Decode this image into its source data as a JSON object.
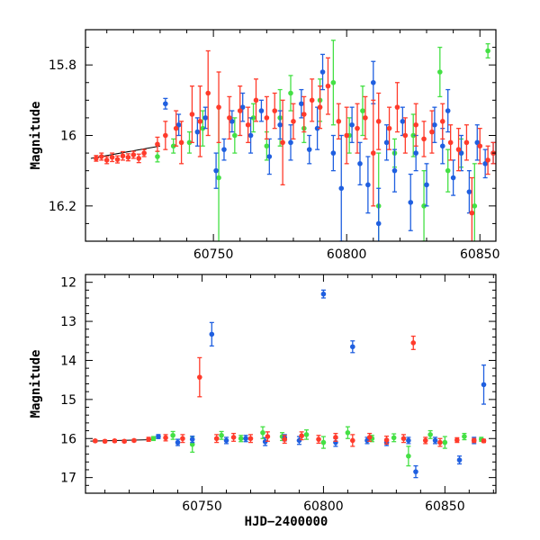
{
  "chart_data": [
    {
      "type": "scatter",
      "panel": "top",
      "xlim": [
        60702,
        60856
      ],
      "ylim": [
        16.3,
        15.7
      ],
      "y_inverted": true,
      "xlabel": "",
      "ylabel": "Magnitude",
      "x_ticks": [
        60750,
        60800,
        60850
      ],
      "y_ticks": [
        15.8,
        16,
        16.2
      ],
      "x_tick_labels": [
        "60750",
        "60800",
        "60850"
      ],
      "y_tick_labels": [
        "15.8",
        "16",
        "16.2"
      ],
      "grid": false,
      "colors": {
        "red": "#ff3b2b",
        "blue": "#1f5fe0",
        "green": "#44e044",
        "line": "#000000"
      },
      "trend_line": [
        [
          60704,
          16.065
        ],
        [
          60730,
          16.03
        ]
      ],
      "series": [
        {
          "color": "red",
          "points": [
            [
              60706,
              16.065,
              0.008
            ],
            [
              60708,
              16.06,
              0.01
            ],
            [
              60710,
              16.07,
              0.01
            ],
            [
              60712,
              16.062,
              0.012
            ],
            [
              60714,
              16.068,
              0.01
            ],
            [
              60716,
              16.058,
              0.012
            ],
            [
              60718,
              16.062,
              0.01
            ],
            [
              60720,
              16.055,
              0.01
            ],
            [
              60722,
              16.065,
              0.012
            ],
            [
              60724,
              16.05,
              0.01
            ],
            [
              60729,
              16.025,
              0.02
            ],
            [
              60732,
              16.0,
              0.04
            ],
            [
              60736,
              15.98,
              0.05
            ],
            [
              60738,
              16.02,
              0.06
            ],
            [
              60742,
              15.94,
              0.08
            ],
            [
              60745,
              15.96,
              0.1
            ],
            [
              60748,
              15.88,
              0.12
            ],
            [
              60752,
              15.92,
              0.1
            ],
            [
              60756,
              15.95,
              0.06
            ],
            [
              60760,
              15.93,
              0.07
            ],
            [
              60763,
              15.97,
              0.05
            ],
            [
              60766,
              15.9,
              0.06
            ],
            [
              60770,
              15.95,
              0.06
            ],
            [
              60773,
              15.93,
              0.05
            ],
            [
              60776,
              16.02,
              0.12
            ],
            [
              60780,
              15.96,
              0.05
            ],
            [
              60784,
              15.94,
              0.05
            ],
            [
              60787,
              15.9,
              0.06
            ],
            [
              60790,
              15.92,
              0.06
            ],
            [
              60793,
              15.86,
              0.08
            ],
            [
              60797,
              15.96,
              0.05
            ],
            [
              60800,
              16.0,
              0.08
            ],
            [
              60804,
              15.98,
              0.07
            ],
            [
              60807,
              15.95,
              0.06
            ],
            [
              60810,
              16.05,
              0.15
            ],
            [
              60812,
              15.96,
              0.08
            ],
            [
              60816,
              15.98,
              0.06
            ],
            [
              60819,
              15.92,
              0.07
            ],
            [
              60822,
              16.0,
              0.05
            ],
            [
              60826,
              15.97,
              0.06
            ],
            [
              60829,
              16.01,
              0.05
            ],
            [
              60832,
              15.99,
              0.06
            ],
            [
              60836,
              15.96,
              0.05
            ],
            [
              60839,
              16.02,
              0.05
            ],
            [
              60842,
              16.04,
              0.06
            ],
            [
              60845,
              16.02,
              0.05
            ],
            [
              60847,
              16.22,
              0.1
            ],
            [
              60850,
              16.03,
              0.05
            ],
            [
              60853,
              16.07,
              0.04
            ],
            [
              60855,
              16.05,
              0.03
            ]
          ]
        },
        {
          "color": "blue",
          "points": [
            [
              60732,
              15.91,
              0.015
            ],
            [
              60737,
              15.97,
              0.03
            ],
            [
              60744,
              15.99,
              0.04
            ],
            [
              60747,
              15.95,
              0.03
            ],
            [
              60751,
              16.1,
              0.05
            ],
            [
              60754,
              16.04,
              0.03
            ],
            [
              60757,
              15.96,
              0.03
            ],
            [
              60761,
              15.92,
              0.04
            ],
            [
              60764,
              16.0,
              0.05
            ],
            [
              60768,
              15.93,
              0.03
            ],
            [
              60771,
              16.06,
              0.05
            ],
            [
              60775,
              15.97,
              0.04
            ],
            [
              60779,
              16.02,
              0.05
            ],
            [
              60783,
              15.91,
              0.04
            ],
            [
              60786,
              16.04,
              0.04
            ],
            [
              60789,
              15.98,
              0.06
            ],
            [
              60791,
              15.82,
              0.05
            ],
            [
              60795,
              16.05,
              0.05
            ],
            [
              60798,
              16.15,
              0.15
            ],
            [
              60802,
              15.97,
              0.05
            ],
            [
              60805,
              16.08,
              0.06
            ],
            [
              60808,
              16.14,
              0.08
            ],
            [
              60810,
              15.85,
              0.06
            ],
            [
              60812,
              16.25,
              0.1
            ],
            [
              60815,
              16.02,
              0.05
            ],
            [
              60818,
              16.1,
              0.06
            ],
            [
              60821,
              15.96,
              0.04
            ],
            [
              60824,
              16.19,
              0.08
            ],
            [
              60826,
              16.05,
              0.05
            ],
            [
              60830,
              16.14,
              0.06
            ],
            [
              60833,
              15.97,
              0.05
            ],
            [
              60836,
              16.03,
              0.05
            ],
            [
              60838,
              15.93,
              0.06
            ],
            [
              60840,
              16.12,
              0.05
            ],
            [
              60843,
              16.05,
              0.05
            ],
            [
              60846,
              16.16,
              0.06
            ],
            [
              60849,
              16.02,
              0.05
            ],
            [
              60852,
              16.08,
              0.04
            ],
            [
              60855,
              16.05,
              0.03
            ]
          ]
        },
        {
          "color": "green",
          "points": [
            [
              60729,
              16.06,
              0.015
            ],
            [
              60735,
              16.03,
              0.02
            ],
            [
              60741,
              16.02,
              0.03
            ],
            [
              60746,
              15.98,
              0.05
            ],
            [
              60752,
              16.12,
              0.2
            ],
            [
              60758,
              16.0,
              0.05
            ],
            [
              60765,
              15.95,
              0.04
            ],
            [
              60770,
              16.03,
              0.04
            ],
            [
              60775,
              15.95,
              0.08
            ],
            [
              60779,
              15.88,
              0.05
            ],
            [
              60784,
              15.98,
              0.04
            ],
            [
              60790,
              15.9,
              0.06
            ],
            [
              60795,
              15.85,
              0.12
            ],
            [
              60801,
              16.0,
              0.05
            ],
            [
              60806,
              15.93,
              0.07
            ],
            [
              60812,
              16.2,
              0.15
            ],
            [
              60818,
              16.05,
              0.04
            ],
            [
              60825,
              16.0,
              0.06
            ],
            [
              60829,
              16.2,
              0.1
            ],
            [
              60835,
              15.82,
              0.07
            ],
            [
              60838,
              16.1,
              0.06
            ],
            [
              60843,
              16.05,
              0.04
            ],
            [
              60848,
              16.2,
              0.12
            ],
            [
              60853,
              15.76,
              0.02
            ]
          ]
        }
      ]
    },
    {
      "type": "scatter",
      "panel": "bottom",
      "xlim": [
        60702,
        60871
      ],
      "ylim": [
        17.4,
        11.8
      ],
      "y_inverted": true,
      "xlabel": "HJD−2400000",
      "ylabel": "Magnitude",
      "x_ticks": [
        60750,
        60800,
        60850
      ],
      "y_ticks": [
        12,
        13,
        14,
        15,
        16,
        17
      ],
      "x_tick_labels": [
        "60750",
        "60800",
        "60850"
      ],
      "y_tick_labels": [
        "12",
        "13",
        "14",
        "15",
        "16",
        "17"
      ],
      "grid": false,
      "colors": {
        "red": "#ff3b2b",
        "blue": "#1f5fe0",
        "green": "#44e044",
        "line": "#000000"
      },
      "trend_line": [
        [
          60704,
          16.065
        ],
        [
          60730,
          16.03
        ]
      ],
      "series": [
        {
          "color": "red",
          "points": [
            [
              60706,
              16.06,
              0.03
            ],
            [
              60710,
              16.07,
              0.03
            ],
            [
              60714,
              16.06,
              0.03
            ],
            [
              60718,
              16.07,
              0.03
            ],
            [
              60722,
              16.05,
              0.03
            ],
            [
              60728,
              16.02,
              0.05
            ],
            [
              60735,
              15.98,
              0.08
            ],
            [
              60742,
              16.0,
              0.1
            ],
            [
              60749,
              14.43,
              0.5
            ],
            [
              60756,
              16.0,
              0.1
            ],
            [
              60763,
              15.97,
              0.1
            ],
            [
              60770,
              16.0,
              0.1
            ],
            [
              60777,
              15.95,
              0.12
            ],
            [
              60784,
              16.02,
              0.1
            ],
            [
              60791,
              15.93,
              0.1
            ],
            [
              60798,
              16.02,
              0.1
            ],
            [
              60805,
              15.97,
              0.1
            ],
            [
              60812,
              16.05,
              0.15
            ],
            [
              60819,
              15.97,
              0.1
            ],
            [
              60826,
              16.04,
              0.1
            ],
            [
              60833,
              16.0,
              0.1
            ],
            [
              60837,
              13.55,
              0.17
            ],
            [
              60842,
              16.05,
              0.08
            ],
            [
              60848,
              16.1,
              0.1
            ],
            [
              60855,
              16.04,
              0.06
            ],
            [
              60862,
              16.05,
              0.05
            ],
            [
              60866,
              16.06,
              0.04
            ]
          ]
        },
        {
          "color": "blue",
          "points": [
            [
              60732,
              15.95,
              0.05
            ],
            [
              60740,
              16.1,
              0.08
            ],
            [
              60746,
              16.02,
              0.08
            ],
            [
              60754,
              13.33,
              0.3
            ],
            [
              60760,
              16.05,
              0.08
            ],
            [
              60768,
              16.0,
              0.08
            ],
            [
              60776,
              16.08,
              0.1
            ],
            [
              60784,
              15.98,
              0.08
            ],
            [
              60790,
              16.05,
              0.1
            ],
            [
              60800,
              12.3,
              0.1
            ],
            [
              60805,
              16.1,
              0.1
            ],
            [
              60812,
              13.65,
              0.15
            ],
            [
              60818,
              16.05,
              0.08
            ],
            [
              60826,
              16.1,
              0.08
            ],
            [
              60835,
              16.05,
              0.08
            ],
            [
              60838,
              16.85,
              0.15
            ],
            [
              60846,
              16.05,
              0.08
            ],
            [
              60856,
              16.55,
              0.1
            ],
            [
              60862,
              16.05,
              0.08
            ],
            [
              60866,
              14.62,
              0.5
            ]
          ]
        },
        {
          "color": "green",
          "points": [
            [
              60730,
              16.0,
              0.05
            ],
            [
              60738,
              15.92,
              0.1
            ],
            [
              60746,
              16.15,
              0.2
            ],
            [
              60758,
              15.92,
              0.1
            ],
            [
              60766,
              16.0,
              0.08
            ],
            [
              60775,
              15.85,
              0.15
            ],
            [
              60783,
              15.95,
              0.1
            ],
            [
              60793,
              15.9,
              0.12
            ],
            [
              60800,
              16.1,
              0.15
            ],
            [
              60810,
              15.85,
              0.15
            ],
            [
              60820,
              16.0,
              0.08
            ],
            [
              60829,
              15.98,
              0.1
            ],
            [
              60835,
              16.45,
              0.25
            ],
            [
              60844,
              15.9,
              0.1
            ],
            [
              60850,
              16.1,
              0.15
            ],
            [
              60858,
              15.95,
              0.08
            ],
            [
              60865,
              16.02,
              0.05
            ]
          ]
        }
      ]
    }
  ]
}
